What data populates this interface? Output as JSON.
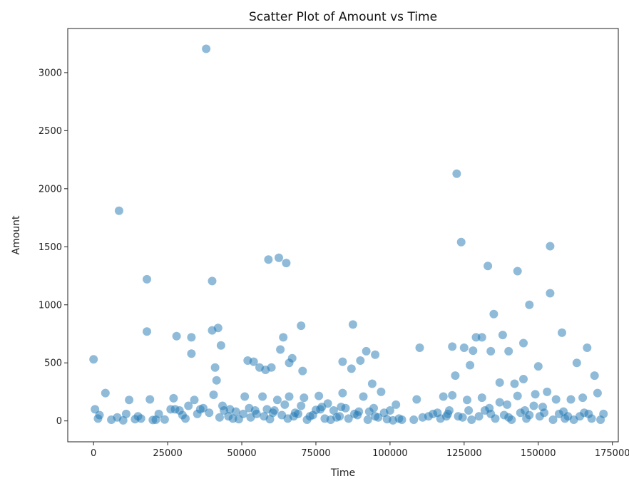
{
  "chart_data": {
    "type": "scatter",
    "title": "Scatter Plot of Amount vs Time",
    "xlabel": "Time",
    "ylabel": "Amount",
    "xlim": [
      -8700,
      177000
    ],
    "ylim": [
      -180,
      3380
    ],
    "xticks": [
      0,
      25000,
      50000,
      75000,
      100000,
      125000,
      150000,
      175000
    ],
    "yticks": [
      0,
      500,
      1000,
      1500,
      2000,
      2500,
      3000
    ],
    "grid": false,
    "legend": "none",
    "point_color": "#1f77b4",
    "point_alpha": 0.5,
    "points": [
      [
        0,
        530
      ],
      [
        500,
        100
      ],
      [
        4000,
        240
      ],
      [
        12000,
        180
      ],
      [
        19000,
        185
      ],
      [
        27000,
        195
      ],
      [
        34000,
        180
      ],
      [
        40500,
        225
      ],
      [
        36000,
        100
      ],
      [
        46000,
        100
      ],
      [
        51000,
        210
      ],
      [
        57000,
        210
      ],
      [
        62000,
        180
      ],
      [
        66000,
        210
      ],
      [
        71000,
        200
      ],
      [
        76000,
        215
      ],
      [
        79000,
        150
      ],
      [
        84000,
        240
      ],
      [
        91000,
        210
      ],
      [
        97000,
        250
      ],
      [
        102000,
        140
      ],
      [
        109000,
        185
      ],
      [
        118000,
        210
      ],
      [
        121000,
        220
      ],
      [
        126000,
        180
      ],
      [
        131000,
        200
      ],
      [
        137000,
        160
      ],
      [
        143000,
        215
      ],
      [
        149000,
        230
      ],
      [
        153000,
        250
      ],
      [
        156000,
        185
      ],
      [
        161000,
        185
      ],
      [
        165000,
        200
      ],
      [
        170000,
        240
      ],
      [
        8000,
        30
      ],
      [
        15000,
        40
      ],
      [
        22000,
        60
      ],
      [
        30000,
        50
      ],
      [
        48000,
        80
      ],
      [
        55000,
        60
      ],
      [
        61000,
        90
      ],
      [
        68000,
        70
      ],
      [
        73000,
        40
      ],
      [
        82000,
        30
      ],
      [
        88000,
        60
      ],
      [
        95000,
        40
      ],
      [
        103000,
        20
      ],
      [
        111000,
        30
      ],
      [
        116000,
        70
      ],
      [
        123000,
        40
      ],
      [
        134000,
        60
      ],
      [
        140000,
        30
      ],
      [
        147000,
        50
      ],
      [
        152000,
        70
      ],
      [
        160000,
        40
      ],
      [
        167000,
        60
      ],
      [
        172000,
        60
      ],
      [
        8600,
        1810
      ],
      [
        18000,
        1220
      ],
      [
        18000,
        770
      ],
      [
        28000,
        730
      ],
      [
        33000,
        580
      ],
      [
        33000,
        720
      ],
      [
        40000,
        1205
      ],
      [
        40000,
        780
      ],
      [
        41000,
        460
      ],
      [
        41500,
        350
      ],
      [
        42000,
        800
      ],
      [
        43000,
        650
      ],
      [
        38000,
        3205
      ],
      [
        52000,
        520
      ],
      [
        54000,
        510
      ],
      [
        56000,
        460
      ],
      [
        58000,
        440
      ],
      [
        59000,
        1390
      ],
      [
        60000,
        460
      ],
      [
        62500,
        1405
      ],
      [
        63000,
        615
      ],
      [
        64000,
        720
      ],
      [
        65000,
        1360
      ],
      [
        66000,
        500
      ],
      [
        67000,
        540
      ],
      [
        70000,
        820
      ],
      [
        70500,
        430
      ],
      [
        84000,
        510
      ],
      [
        87000,
        450
      ],
      [
        87500,
        830
      ],
      [
        90000,
        520
      ],
      [
        92000,
        600
      ],
      [
        94000,
        320
      ],
      [
        95000,
        570
      ],
      [
        110000,
        630
      ],
      [
        121000,
        640
      ],
      [
        122500,
        2130
      ],
      [
        124000,
        1540
      ],
      [
        125000,
        630
      ],
      [
        128000,
        605
      ],
      [
        129000,
        720
      ],
      [
        131000,
        720
      ],
      [
        133000,
        1335
      ],
      [
        134000,
        600
      ],
      [
        135000,
        920
      ],
      [
        138000,
        740
      ],
      [
        140000,
        600
      ],
      [
        142000,
        320
      ],
      [
        143000,
        1290
      ],
      [
        145000,
        670
      ],
      [
        147000,
        1000
      ],
      [
        150000,
        470
      ],
      [
        154000,
        1505
      ],
      [
        154000,
        1100
      ],
      [
        158000,
        760
      ],
      [
        163000,
        500
      ],
      [
        166500,
        630
      ],
      [
        169000,
        390
      ],
      [
        122000,
        390
      ],
      [
        127000,
        480
      ],
      [
        137000,
        330
      ],
      [
        145000,
        360
      ],
      [
        148500,
        130
      ],
      [
        75000,
        95
      ],
      [
        77000,
        120
      ],
      [
        85000,
        110
      ],
      [
        93000,
        80
      ],
      [
        98000,
        70
      ],
      [
        100000,
        90
      ],
      [
        1500,
        20
      ],
      [
        6000,
        10
      ],
      [
        10000,
        5
      ],
      [
        14000,
        15
      ],
      [
        20000,
        8
      ],
      [
        24000,
        12
      ],
      [
        26000,
        100
      ],
      [
        27500,
        100
      ],
      [
        29000,
        90
      ],
      [
        31000,
        20
      ],
      [
        35000,
        60
      ],
      [
        37000,
        110
      ],
      [
        39000,
        70
      ],
      [
        42500,
        30
      ],
      [
        44000,
        90
      ],
      [
        45500,
        40
      ],
      [
        47000,
        20
      ],
      [
        49000,
        15
      ],
      [
        50500,
        60
      ],
      [
        53000,
        30
      ],
      [
        54500,
        90
      ],
      [
        57500,
        40
      ],
      [
        59500,
        15
      ],
      [
        60500,
        70
      ],
      [
        63500,
        50
      ],
      [
        65500,
        20
      ],
      [
        67500,
        40
      ],
      [
        69000,
        60
      ],
      [
        72000,
        10
      ],
      [
        74000,
        50
      ],
      [
        78000,
        20
      ],
      [
        80000,
        10
      ],
      [
        81000,
        90
      ],
      [
        83000,
        40
      ],
      [
        86000,
        20
      ],
      [
        89000,
        50
      ],
      [
        92500,
        10
      ],
      [
        96000,
        30
      ],
      [
        99000,
        15
      ],
      [
        101000,
        5
      ],
      [
        104000,
        10
      ],
      [
        108000,
        10
      ],
      [
        113000,
        40
      ],
      [
        114500,
        60
      ],
      [
        117000,
        20
      ],
      [
        119000,
        40
      ],
      [
        120000,
        90
      ],
      [
        124500,
        30
      ],
      [
        127500,
        10
      ],
      [
        130000,
        40
      ],
      [
        132000,
        90
      ],
      [
        135500,
        20
      ],
      [
        138500,
        50
      ],
      [
        141000,
        10
      ],
      [
        144000,
        70
      ],
      [
        146000,
        20
      ],
      [
        150500,
        40
      ],
      [
        155000,
        10
      ],
      [
        157000,
        60
      ],
      [
        159000,
        20
      ],
      [
        162000,
        10
      ],
      [
        164000,
        40
      ],
      [
        168000,
        20
      ],
      [
        171000,
        10
      ],
      [
        2000,
        50
      ],
      [
        11000,
        60
      ],
      [
        16000,
        20
      ],
      [
        21000,
        10
      ],
      [
        32000,
        130
      ],
      [
        43500,
        130
      ],
      [
        52500,
        110
      ],
      [
        58500,
        100
      ],
      [
        64500,
        140
      ],
      [
        70000,
        130
      ],
      [
        76500,
        100
      ],
      [
        83500,
        120
      ],
      [
        89500,
        80
      ],
      [
        94500,
        110
      ],
      [
        119500,
        60
      ],
      [
        126500,
        90
      ],
      [
        133500,
        110
      ],
      [
        139500,
        140
      ],
      [
        145500,
        90
      ],
      [
        151500,
        120
      ],
      [
        158500,
        80
      ],
      [
        165500,
        70
      ]
    ]
  }
}
